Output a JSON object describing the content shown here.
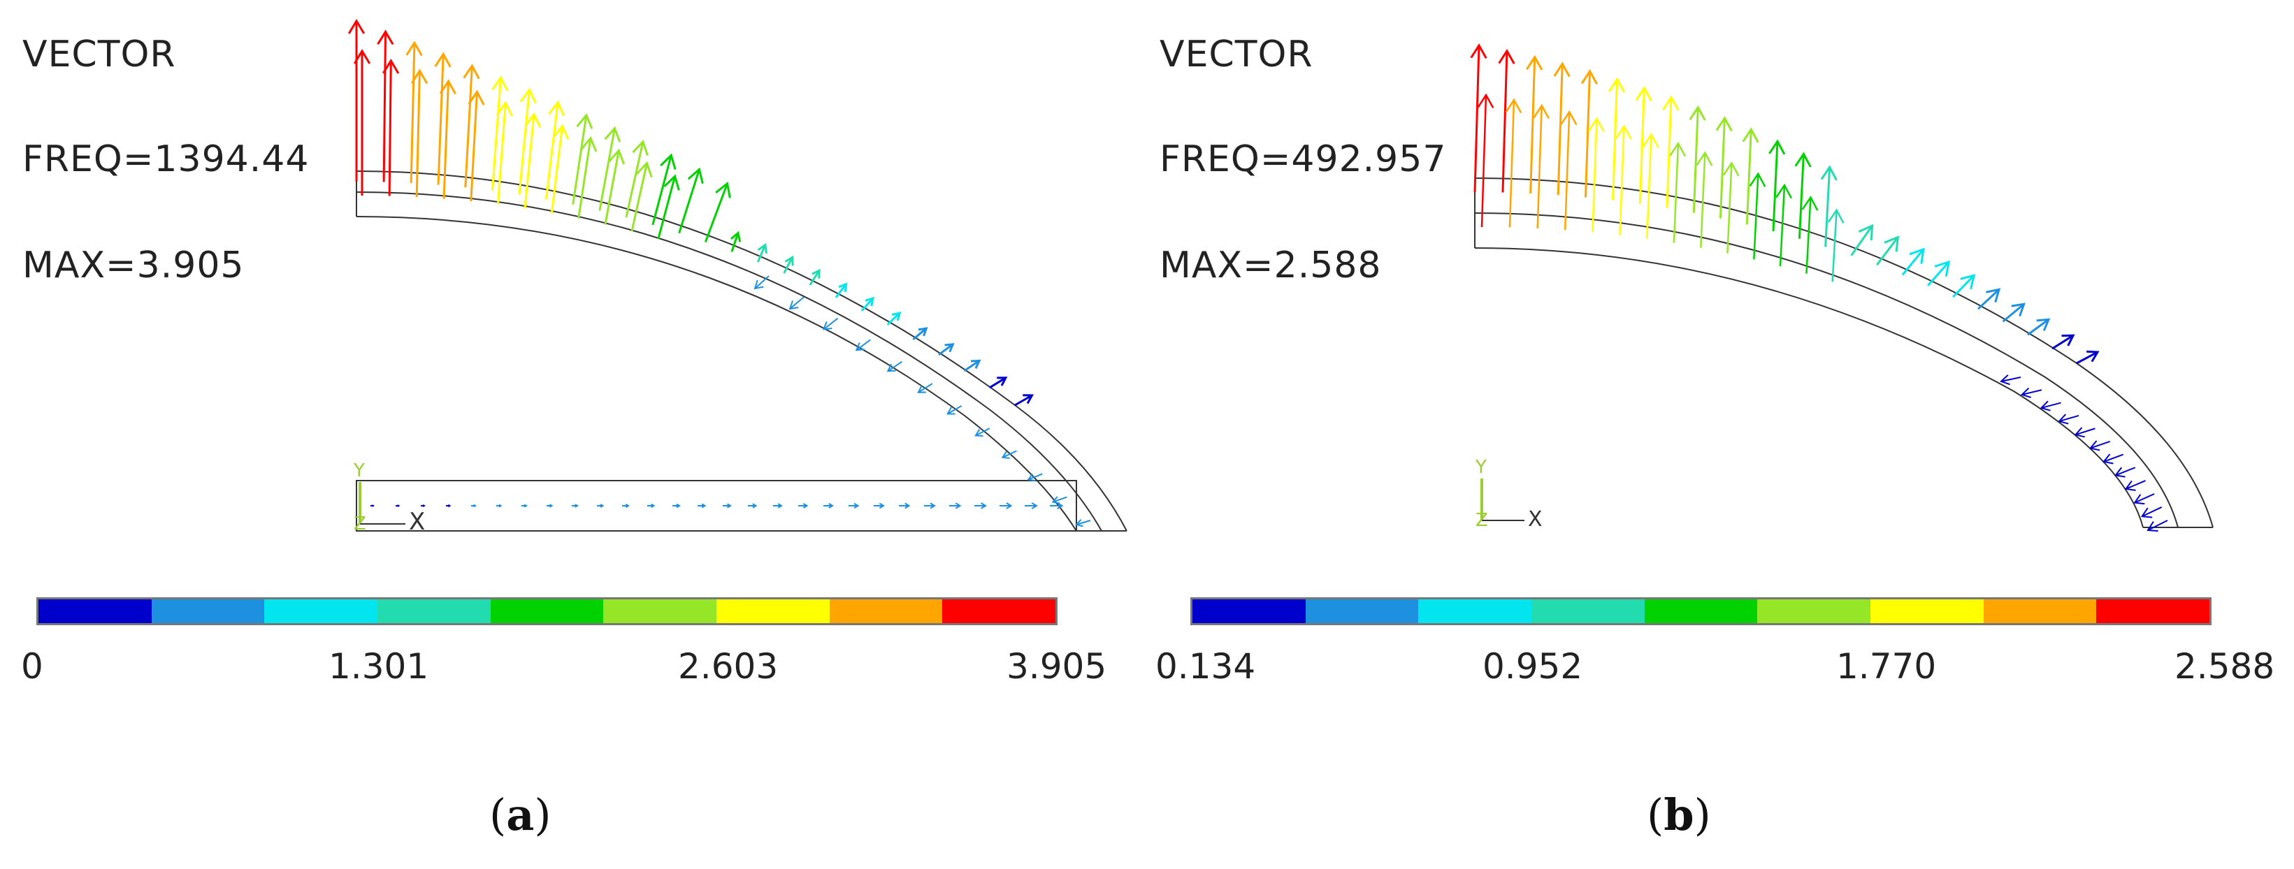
{
  "panels": [
    {
      "title": "VECTOR",
      "freq": "FREQ=1394.44",
      "max": "MAX=3.905",
      "ticks": [
        "0",
        "1.301",
        "2.603",
        "3.905"
      ],
      "caption_letter": "a"
    },
    {
      "title": "VECTOR",
      "freq": "FREQ=492.957",
      "max": "MAX=2.588",
      "ticks": [
        "0.134",
        "0.952",
        "1.770",
        "2.588"
      ],
      "caption_letter": "b"
    }
  ],
  "axis_triad": {
    "y": "Y",
    "z": "Z",
    "x": "X"
  },
  "colors": {
    "legend": [
      "#0000cc",
      "#1e90e0",
      "#00e5ee",
      "#22dcb0",
      "#00d200",
      "#96e628",
      "#ffff00",
      "#ffa500",
      "#ff0000"
    ],
    "mesh": "#333333",
    "triad": "#9acd32"
  }
}
